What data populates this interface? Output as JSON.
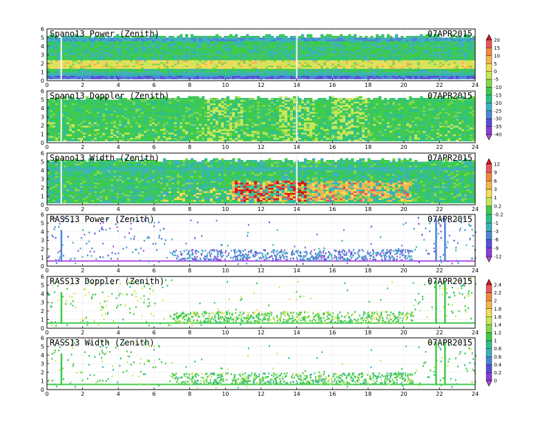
{
  "chart_data": [
    {
      "type": "heatmap",
      "title": "Spano13 Power (Zenith)",
      "date": "07APR2015",
      "x_ticks": [
        0,
        2,
        4,
        6,
        8,
        10,
        12,
        14,
        16,
        18,
        20,
        22,
        24
      ],
      "y_ticks": [
        0,
        1,
        2,
        3,
        4,
        5,
        6
      ],
      "xlim": [
        0,
        24
      ],
      "ylim": [
        0,
        6
      ],
      "colorbar": "cb1",
      "pattern": "power"
    },
    {
      "type": "heatmap",
      "title": "Spano13 Doppler (Zenith)",
      "date": "07APR2015",
      "x_ticks": [
        0,
        2,
        4,
        6,
        8,
        10,
        12,
        14,
        16,
        18,
        20,
        22,
        24
      ],
      "y_ticks": [
        0,
        1,
        2,
        3,
        4,
        5,
        6
      ],
      "xlim": [
        0,
        24
      ],
      "ylim": [
        0,
        6
      ],
      "pattern": "doppler"
    },
    {
      "type": "heatmap",
      "title": "Spano13 Width (Zenith)",
      "date": "07APR2015",
      "x_ticks": [
        0,
        2,
        4,
        6,
        8,
        10,
        12,
        14,
        16,
        18,
        20,
        22,
        24
      ],
      "y_ticks": [
        0,
        1,
        2,
        3,
        4,
        5,
        6
      ],
      "xlim": [
        0,
        24
      ],
      "ylim": [
        0,
        6
      ],
      "colorbar": "cb2",
      "pattern": "width"
    },
    {
      "type": "heatmap",
      "title": "RASS13 Power (Zenith)",
      "date": "07APR2015",
      "x_ticks": [
        0,
        2,
        4,
        6,
        8,
        10,
        12,
        14,
        16,
        18,
        20,
        22,
        24
      ],
      "y_ticks": [
        0,
        1,
        2,
        3,
        4,
        5,
        6
      ],
      "xlim": [
        0,
        24
      ],
      "ylim": [
        0,
        6
      ],
      "pattern": "rasspower"
    },
    {
      "type": "heatmap",
      "title": "RASS13 Doppler (Zenith)",
      "date": "07APR2015",
      "x_ticks": [
        0,
        2,
        4,
        6,
        8,
        10,
        12,
        14,
        16,
        18,
        20,
        22,
        24
      ],
      "y_ticks": [
        0,
        1,
        2,
        3,
        4,
        5,
        6
      ],
      "xlim": [
        0,
        24
      ],
      "ylim": [
        0,
        6
      ],
      "colorbar": "cb3",
      "pattern": "rassdop"
    },
    {
      "type": "heatmap",
      "title": "RASS13 Width (Zenith)",
      "date": "07APR2015",
      "x_ticks": [
        0,
        2,
        4,
        6,
        8,
        10,
        12,
        14,
        16,
        18,
        20,
        22,
        24
      ],
      "y_ticks": [
        0,
        1,
        2,
        3,
        4,
        5,
        6
      ],
      "xlim": [
        0,
        24
      ],
      "ylim": [
        0,
        6
      ],
      "pattern": "rasswidth"
    }
  ],
  "colorbars": {
    "cb1": {
      "labels": [
        "20",
        "15",
        "10",
        "5",
        "0",
        "-5",
        "-10",
        "-15",
        "-20",
        "-25",
        "-30",
        "-35",
        "-40"
      ],
      "colors": [
        "#d7191c",
        "#e8575a",
        "#f08a3e",
        "#f5b54a",
        "#f3dc5a",
        "#c8e85a",
        "#84d84a",
        "#3ecb4a",
        "#2ec08a",
        "#3fb0c0",
        "#4a86d8",
        "#5a4ed6",
        "#8b3fd6",
        "#b54ae0"
      ]
    },
    "cb2": {
      "labels": [
        "12",
        "9",
        "6",
        "3",
        "1",
        "0.2",
        "-0.2",
        "-1",
        "-3",
        "-6",
        "-9",
        "-12"
      ],
      "colors": [
        "#d7191c",
        "#e8575a",
        "#f08a3e",
        "#f5b54a",
        "#f3dc5a",
        "#c8e85a",
        "#3ecb4a",
        "#2ec08a",
        "#3fb0c0",
        "#4a86d8",
        "#5a4ed6",
        "#8b3fd6",
        "#b54ae0"
      ]
    },
    "cb3": {
      "labels": [
        "2.4",
        "2.2",
        "2",
        "1.8",
        "1.6",
        "1.4",
        "1.2",
        "1",
        "0.8",
        "0.6",
        "0.4",
        "0.2",
        "0"
      ],
      "colors": [
        "#d7191c",
        "#e8575a",
        "#f08a3e",
        "#f5b54a",
        "#f3dc5a",
        "#c8e85a",
        "#84d84a",
        "#3ecb4a",
        "#2ec08a",
        "#3fb0c0",
        "#4a86d8",
        "#5a4ed6",
        "#8b3fd6",
        "#b54ae0"
      ]
    }
  }
}
